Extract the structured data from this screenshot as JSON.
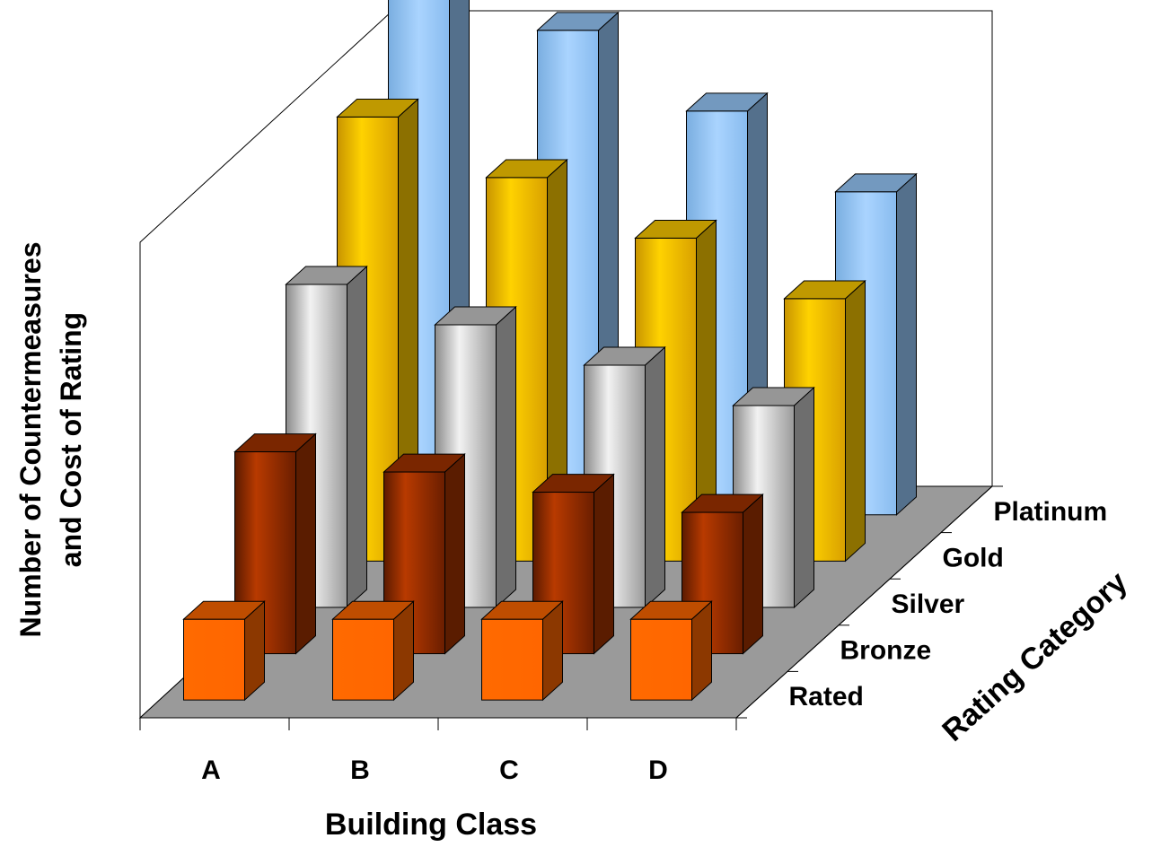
{
  "chart_data": {
    "type": "bar",
    "subtype": "3d-column",
    "title": "",
    "ylabel_lines": [
      "Number of Countermeasures",
      "and Cost of Rating"
    ],
    "xlabel": "Building Class",
    "zlabel": "Rating Category",
    "categories": [
      "A",
      "B",
      "C",
      "D"
    ],
    "series": [
      {
        "name": "Rated",
        "color": "#ff6600",
        "values": [
          1.0,
          1.0,
          1.0,
          1.0
        ]
      },
      {
        "name": "Bronze",
        "color": "#a33300",
        "values": [
          2.5,
          2.25,
          2.0,
          1.75
        ]
      },
      {
        "name": "Silver",
        "color": "#c8c8c8",
        "values": [
          4.0,
          3.5,
          3.0,
          2.5
        ]
      },
      {
        "name": "Gold",
        "color": "#ffcc00",
        "values": [
          5.5,
          4.75,
          4.0,
          3.25
        ]
      },
      {
        "name": "Platinum",
        "color": "#99ccff",
        "values": [
          7.0,
          6.0,
          5.0,
          4.0
        ]
      }
    ],
    "ylim": [
      0,
      8.5
    ],
    "grid": false,
    "legend": "none",
    "colors": {
      "floor": "#9a9a9a",
      "walls": "#ffffff",
      "axis": "#000000"
    }
  }
}
